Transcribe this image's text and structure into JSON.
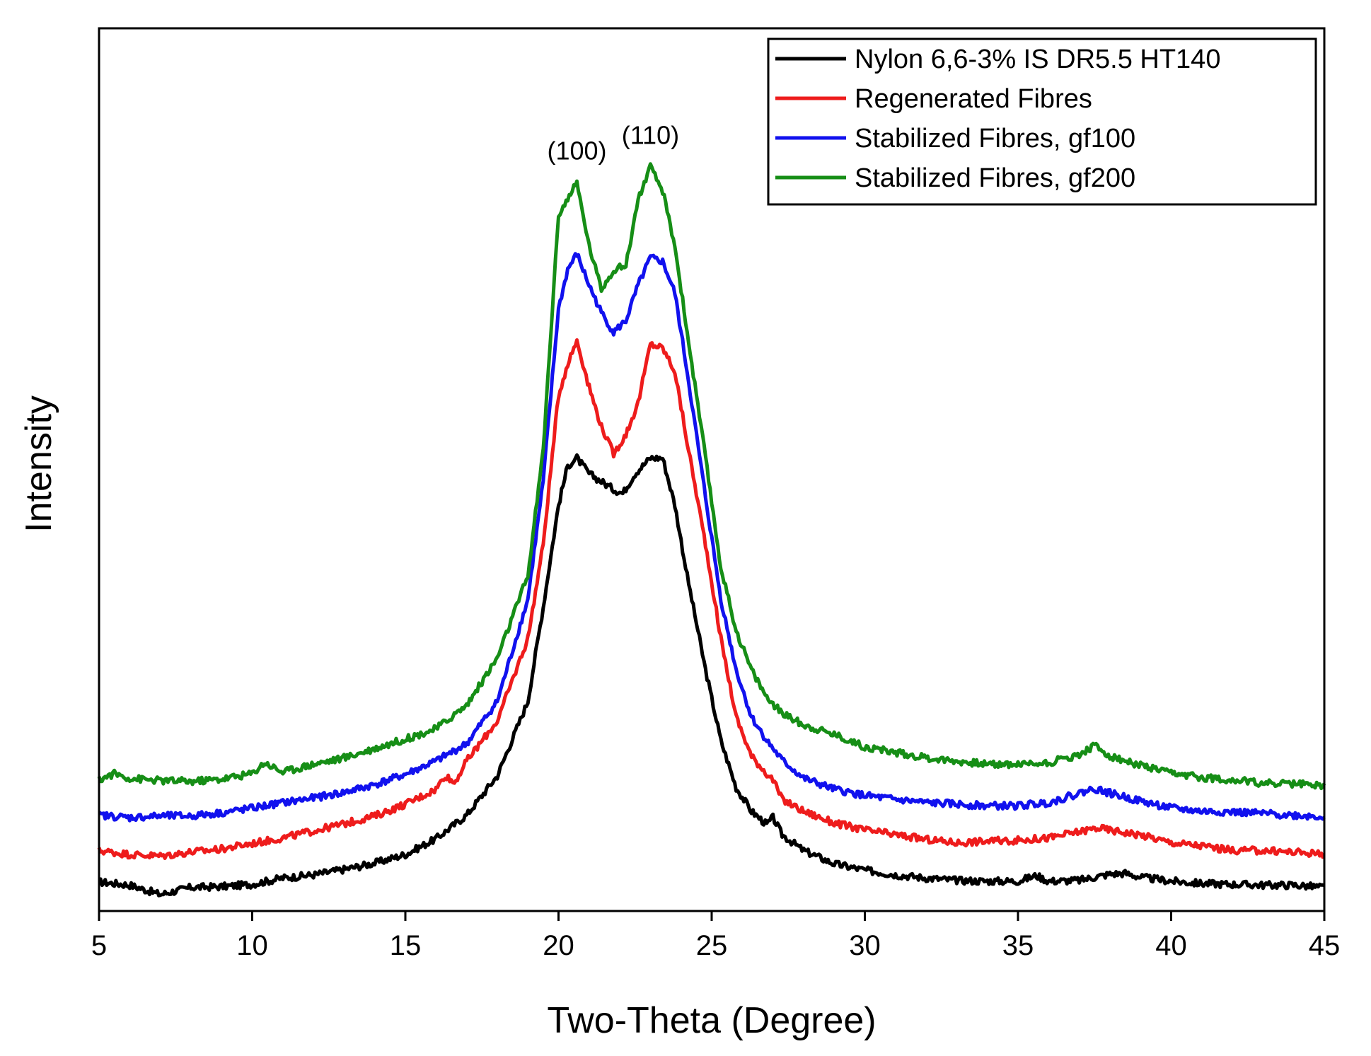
{
  "chart_data": {
    "type": "line",
    "title": "",
    "xlabel": "Two-Theta (Degree)",
    "ylabel": "Intensity",
    "xlim": [
      5,
      45
    ],
    "ylim": [
      0,
      100
    ],
    "xticks": [
      5,
      10,
      15,
      20,
      25,
      30,
      35,
      40,
      45
    ],
    "yticks_shown": false,
    "grid": false,
    "legend_position": "top-right",
    "annotations": [
      {
        "text": "(100)",
        "x": 20.6,
        "y": 93
      },
      {
        "text": "(110)",
        "x": 23.0,
        "y": 95
      }
    ],
    "series": [
      {
        "name": "Nylon 6,6-3% IS DR5.5 HT140",
        "color": "#000000",
        "points": [
          [
            5,
            1.0
          ],
          [
            6,
            0.6
          ],
          [
            7,
            -0.6
          ],
          [
            8,
            0.3
          ],
          [
            9,
            0.4
          ],
          [
            10,
            0.7
          ],
          [
            11,
            1.5
          ],
          [
            12,
            1.9
          ],
          [
            13,
            2.6
          ],
          [
            14,
            3.4
          ],
          [
            15,
            4.5
          ],
          [
            16,
            6.5
          ],
          [
            17,
            9.5
          ],
          [
            18,
            14.5
          ],
          [
            19,
            24
          ],
          [
            19.5,
            36
          ],
          [
            20,
            49
          ],
          [
            20.3,
            54
          ],
          [
            20.6,
            55
          ],
          [
            21,
            53
          ],
          [
            21.4,
            52
          ],
          [
            21.8,
            51
          ],
          [
            22.1,
            50.5
          ],
          [
            22.5,
            53
          ],
          [
            23,
            55
          ],
          [
            23.4,
            55
          ],
          [
            23.8,
            49
          ],
          [
            24.2,
            40
          ],
          [
            24.8,
            28
          ],
          [
            25.3,
            19
          ],
          [
            25.8,
            13
          ],
          [
            26.3,
            10
          ],
          [
            26.8,
            8.3
          ],
          [
            27,
            9.2
          ],
          [
            27.3,
            7
          ],
          [
            28,
            5
          ],
          [
            29,
            3.3
          ],
          [
            30,
            2.5
          ],
          [
            31,
            1.9
          ],
          [
            32,
            1.5
          ],
          [
            33,
            1.2
          ],
          [
            34,
            1.1
          ],
          [
            35,
            1.1
          ],
          [
            35.6,
            1.8
          ],
          [
            36,
            1.1
          ],
          [
            37,
            1.2
          ],
          [
            38,
            2.0
          ],
          [
            38.5,
            2.1
          ],
          [
            39,
            1.6
          ],
          [
            40,
            1.1
          ],
          [
            41,
            0.8
          ],
          [
            42,
            0.7
          ],
          [
            43,
            0.6
          ],
          [
            44,
            0.6
          ],
          [
            45,
            0.3
          ]
        ]
      },
      {
        "name": "Regenerated Fibres",
        "color": "#ee1c1c",
        "points": [
          [
            5,
            5.0
          ],
          [
            6,
            4.5
          ],
          [
            7,
            4.3
          ],
          [
            8,
            4.8
          ],
          [
            9,
            5.2
          ],
          [
            10,
            5.9
          ],
          [
            11,
            6.6
          ],
          [
            12,
            7.5
          ],
          [
            13,
            8.4
          ],
          [
            14,
            9.4
          ],
          [
            15,
            10.9
          ],
          [
            16,
            12.8
          ],
          [
            16.3,
            14.6
          ],
          [
            16.6,
            13.6
          ],
          [
            17,
            16.4
          ],
          [
            18,
            21.5
          ],
          [
            19,
            32
          ],
          [
            19.5,
            44
          ],
          [
            20,
            63
          ],
          [
            20.3,
            67
          ],
          [
            20.6,
            70
          ],
          [
            21,
            64
          ],
          [
            21.4,
            59
          ],
          [
            21.8,
            55.5
          ],
          [
            22.2,
            58
          ],
          [
            22.6,
            62
          ],
          [
            23,
            69.5
          ],
          [
            23.4,
            69
          ],
          [
            23.8,
            66
          ],
          [
            24.2,
            57
          ],
          [
            24.8,
            44
          ],
          [
            25.3,
            32
          ],
          [
            25.8,
            22
          ],
          [
            26.3,
            17
          ],
          [
            26.8,
            14.8
          ],
          [
            27,
            14.0
          ],
          [
            27.3,
            11.5
          ],
          [
            28,
            10.0
          ],
          [
            29,
            8.5
          ],
          [
            30,
            7.6
          ],
          [
            31,
            7.0
          ],
          [
            32,
            6.4
          ],
          [
            33,
            6.0
          ],
          [
            34,
            6.2
          ],
          [
            35,
            6.3
          ],
          [
            36,
            6.6
          ],
          [
            37,
            7.4
          ],
          [
            37.6,
            7.9
          ],
          [
            38,
            7.6
          ],
          [
            39,
            7.0
          ],
          [
            40,
            6.0
          ],
          [
            41,
            5.6
          ],
          [
            42,
            5.0
          ],
          [
            43,
            5.0
          ],
          [
            44,
            4.8
          ],
          [
            45,
            4.6
          ]
        ]
      },
      {
        "name": "Stabilized Fibres, gf100",
        "color": "#1111ee",
        "points": [
          [
            5,
            9.5
          ],
          [
            6,
            9.2
          ],
          [
            7,
            9.4
          ],
          [
            8,
            9.4
          ],
          [
            9,
            9.8
          ],
          [
            10,
            10.4
          ],
          [
            11,
            11.1
          ],
          [
            12,
            11.7
          ],
          [
            13,
            12.4
          ],
          [
            14,
            13.4
          ],
          [
            15,
            14.7
          ],
          [
            16,
            16.4
          ],
          [
            17,
            18.6
          ],
          [
            18,
            24
          ],
          [
            19,
            37
          ],
          [
            19.5,
            52
          ],
          [
            20,
            74
          ],
          [
            20.3,
            79
          ],
          [
            20.6,
            81
          ],
          [
            21,
            77
          ],
          [
            21.4,
            73.5
          ],
          [
            21.8,
            71
          ],
          [
            22.2,
            72.5
          ],
          [
            22.6,
            77
          ],
          [
            23,
            80.5
          ],
          [
            23.4,
            80
          ],
          [
            23.8,
            76
          ],
          [
            24.2,
            66
          ],
          [
            24.8,
            50
          ],
          [
            25.3,
            37
          ],
          [
            25.8,
            28
          ],
          [
            26.3,
            22
          ],
          [
            26.8,
            19
          ],
          [
            27.3,
            16.5
          ],
          [
            28,
            14.2
          ],
          [
            29,
            12.8
          ],
          [
            30,
            12.0
          ],
          [
            31,
            11.5
          ],
          [
            32,
            11.1
          ],
          [
            33,
            10.9
          ],
          [
            34,
            10.7
          ],
          [
            35,
            10.7
          ],
          [
            36,
            11.1
          ],
          [
            37,
            12.3
          ],
          [
            37.5,
            12.9
          ],
          [
            38,
            12.3
          ],
          [
            39,
            11.3
          ],
          [
            40,
            10.4
          ],
          [
            41,
            10.0
          ],
          [
            42,
            9.9
          ],
          [
            43,
            9.7
          ],
          [
            44,
            9.5
          ],
          [
            45,
            9.3
          ]
        ]
      },
      {
        "name": "Stabilized Fibres, gf200",
        "color": "#168e16",
        "points": [
          [
            5,
            14.0
          ],
          [
            5.5,
            14.8
          ],
          [
            6,
            14.2
          ],
          [
            7,
            13.9
          ],
          [
            8,
            13.8
          ],
          [
            9,
            14.1
          ],
          [
            10,
            14.8
          ],
          [
            10.4,
            16.2
          ],
          [
            11,
            15.0
          ],
          [
            12,
            16.0
          ],
          [
            13,
            16.8
          ],
          [
            14,
            18.0
          ],
          [
            15,
            19.2
          ],
          [
            16,
            20.5
          ],
          [
            16.5,
            22
          ],
          [
            17,
            23.5
          ],
          [
            18,
            29.5
          ],
          [
            19,
            40
          ],
          [
            19.5,
            56
          ],
          [
            20,
            86
          ],
          [
            20.3,
            88
          ],
          [
            20.6,
            90
          ],
          [
            21,
            82
          ],
          [
            21.4,
            76.5
          ],
          [
            21.8,
            79
          ],
          [
            22.2,
            79.5
          ],
          [
            22.6,
            88
          ],
          [
            23,
            92
          ],
          [
            23.4,
            89
          ],
          [
            23.8,
            82
          ],
          [
            24.2,
            71
          ],
          [
            24.8,
            55
          ],
          [
            25.3,
            41
          ],
          [
            25.8,
            33
          ],
          [
            26.3,
            28
          ],
          [
            26.8,
            24.5
          ],
          [
            27.3,
            22.5
          ],
          [
            28,
            21
          ],
          [
            29,
            19.8
          ],
          [
            30,
            18.2
          ],
          [
            31,
            17.5
          ],
          [
            32,
            16.8
          ],
          [
            33,
            16.4
          ],
          [
            34,
            16.0
          ],
          [
            35,
            16.0
          ],
          [
            36,
            16.2
          ],
          [
            37,
            17.2
          ],
          [
            37.5,
            18.4
          ],
          [
            38,
            17.0
          ],
          [
            39,
            15.8
          ],
          [
            40,
            14.8
          ],
          [
            41,
            14.3
          ],
          [
            42,
            14.0
          ],
          [
            43,
            13.6
          ],
          [
            44,
            13.5
          ],
          [
            45,
            13.3
          ]
        ]
      }
    ]
  }
}
